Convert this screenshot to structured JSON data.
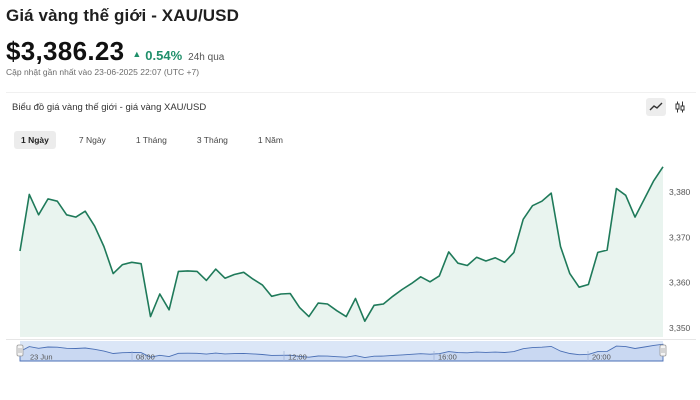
{
  "header": {
    "title": "Giá vàng thế giới - XAU/USD",
    "price": "$3,386.23",
    "change_pct": "0.54%",
    "change_period": "24h qua",
    "updated": "Cập nhật gần nhất vào 23-06-2025 22:07 (UTC +7)"
  },
  "panel": {
    "chart_title": "Biểu đồ giá vàng thế giới - giá vàng XAU/USD",
    "tabs": [
      {
        "label": "1 Ngày",
        "active": true
      },
      {
        "label": "7 Ngày",
        "active": false
      },
      {
        "label": "1 Tháng",
        "active": false
      },
      {
        "label": "3 Tháng",
        "active": false
      },
      {
        "label": "1 Năm",
        "active": false
      }
    ],
    "tools": [
      "line-chart-icon",
      "candlestick-icon"
    ]
  },
  "colors": {
    "line": "#1f7a5a",
    "area": "#e9f4ef",
    "up": "#1f8f6a",
    "navigator_bg": "#dbe6f7",
    "navigator_line": "#4a6fb5"
  },
  "chart_data": {
    "type": "area",
    "title": "Biểu đồ giá vàng thế giới - giá vàng XAU/USD",
    "xlabel": "",
    "ylabel": "",
    "ylim": [
      3348,
      3386
    ],
    "yticks": [
      3350,
      3360,
      3370,
      3380
    ],
    "ytick_labels": [
      "3,350",
      "3,360",
      "3,370",
      "3,380"
    ],
    "x_labels": [
      "23 Jun",
      "08:00",
      "12:00",
      "16:00",
      "20:00"
    ],
    "grid": false,
    "series": [
      {
        "values": [
          3367,
          3379.5,
          3375,
          3378.5,
          3378,
          3375,
          3374.5,
          3375.8,
          3372.5,
          3368,
          3362,
          3364,
          3364.5,
          3364.2,
          3352.5,
          3357.5,
          3354,
          3362.5,
          3362.6,
          3362.5,
          3360.5,
          3363,
          3361,
          3361.8,
          3362.3,
          3360.8,
          3359.5,
          3357,
          3357.5,
          3357.6,
          3354.5,
          3352.5,
          3355.5,
          3355.3,
          3353.8,
          3352.5,
          3356.5,
          3351.5,
          3355,
          3355.3,
          3357,
          3358.5,
          3359.8,
          3361.3,
          3360.2,
          3361.5,
          3366.8,
          3364.3,
          3363.8,
          3365.6,
          3364.8,
          3365.5,
          3364.5,
          3366.7,
          3374,
          3377,
          3378,
          3379.8,
          3368,
          3362,
          3359,
          3359.6,
          3366.7,
          3367.2,
          3380.8,
          3379.3,
          3374.5,
          3378.5,
          3382.5,
          3385.6
        ]
      }
    ]
  }
}
